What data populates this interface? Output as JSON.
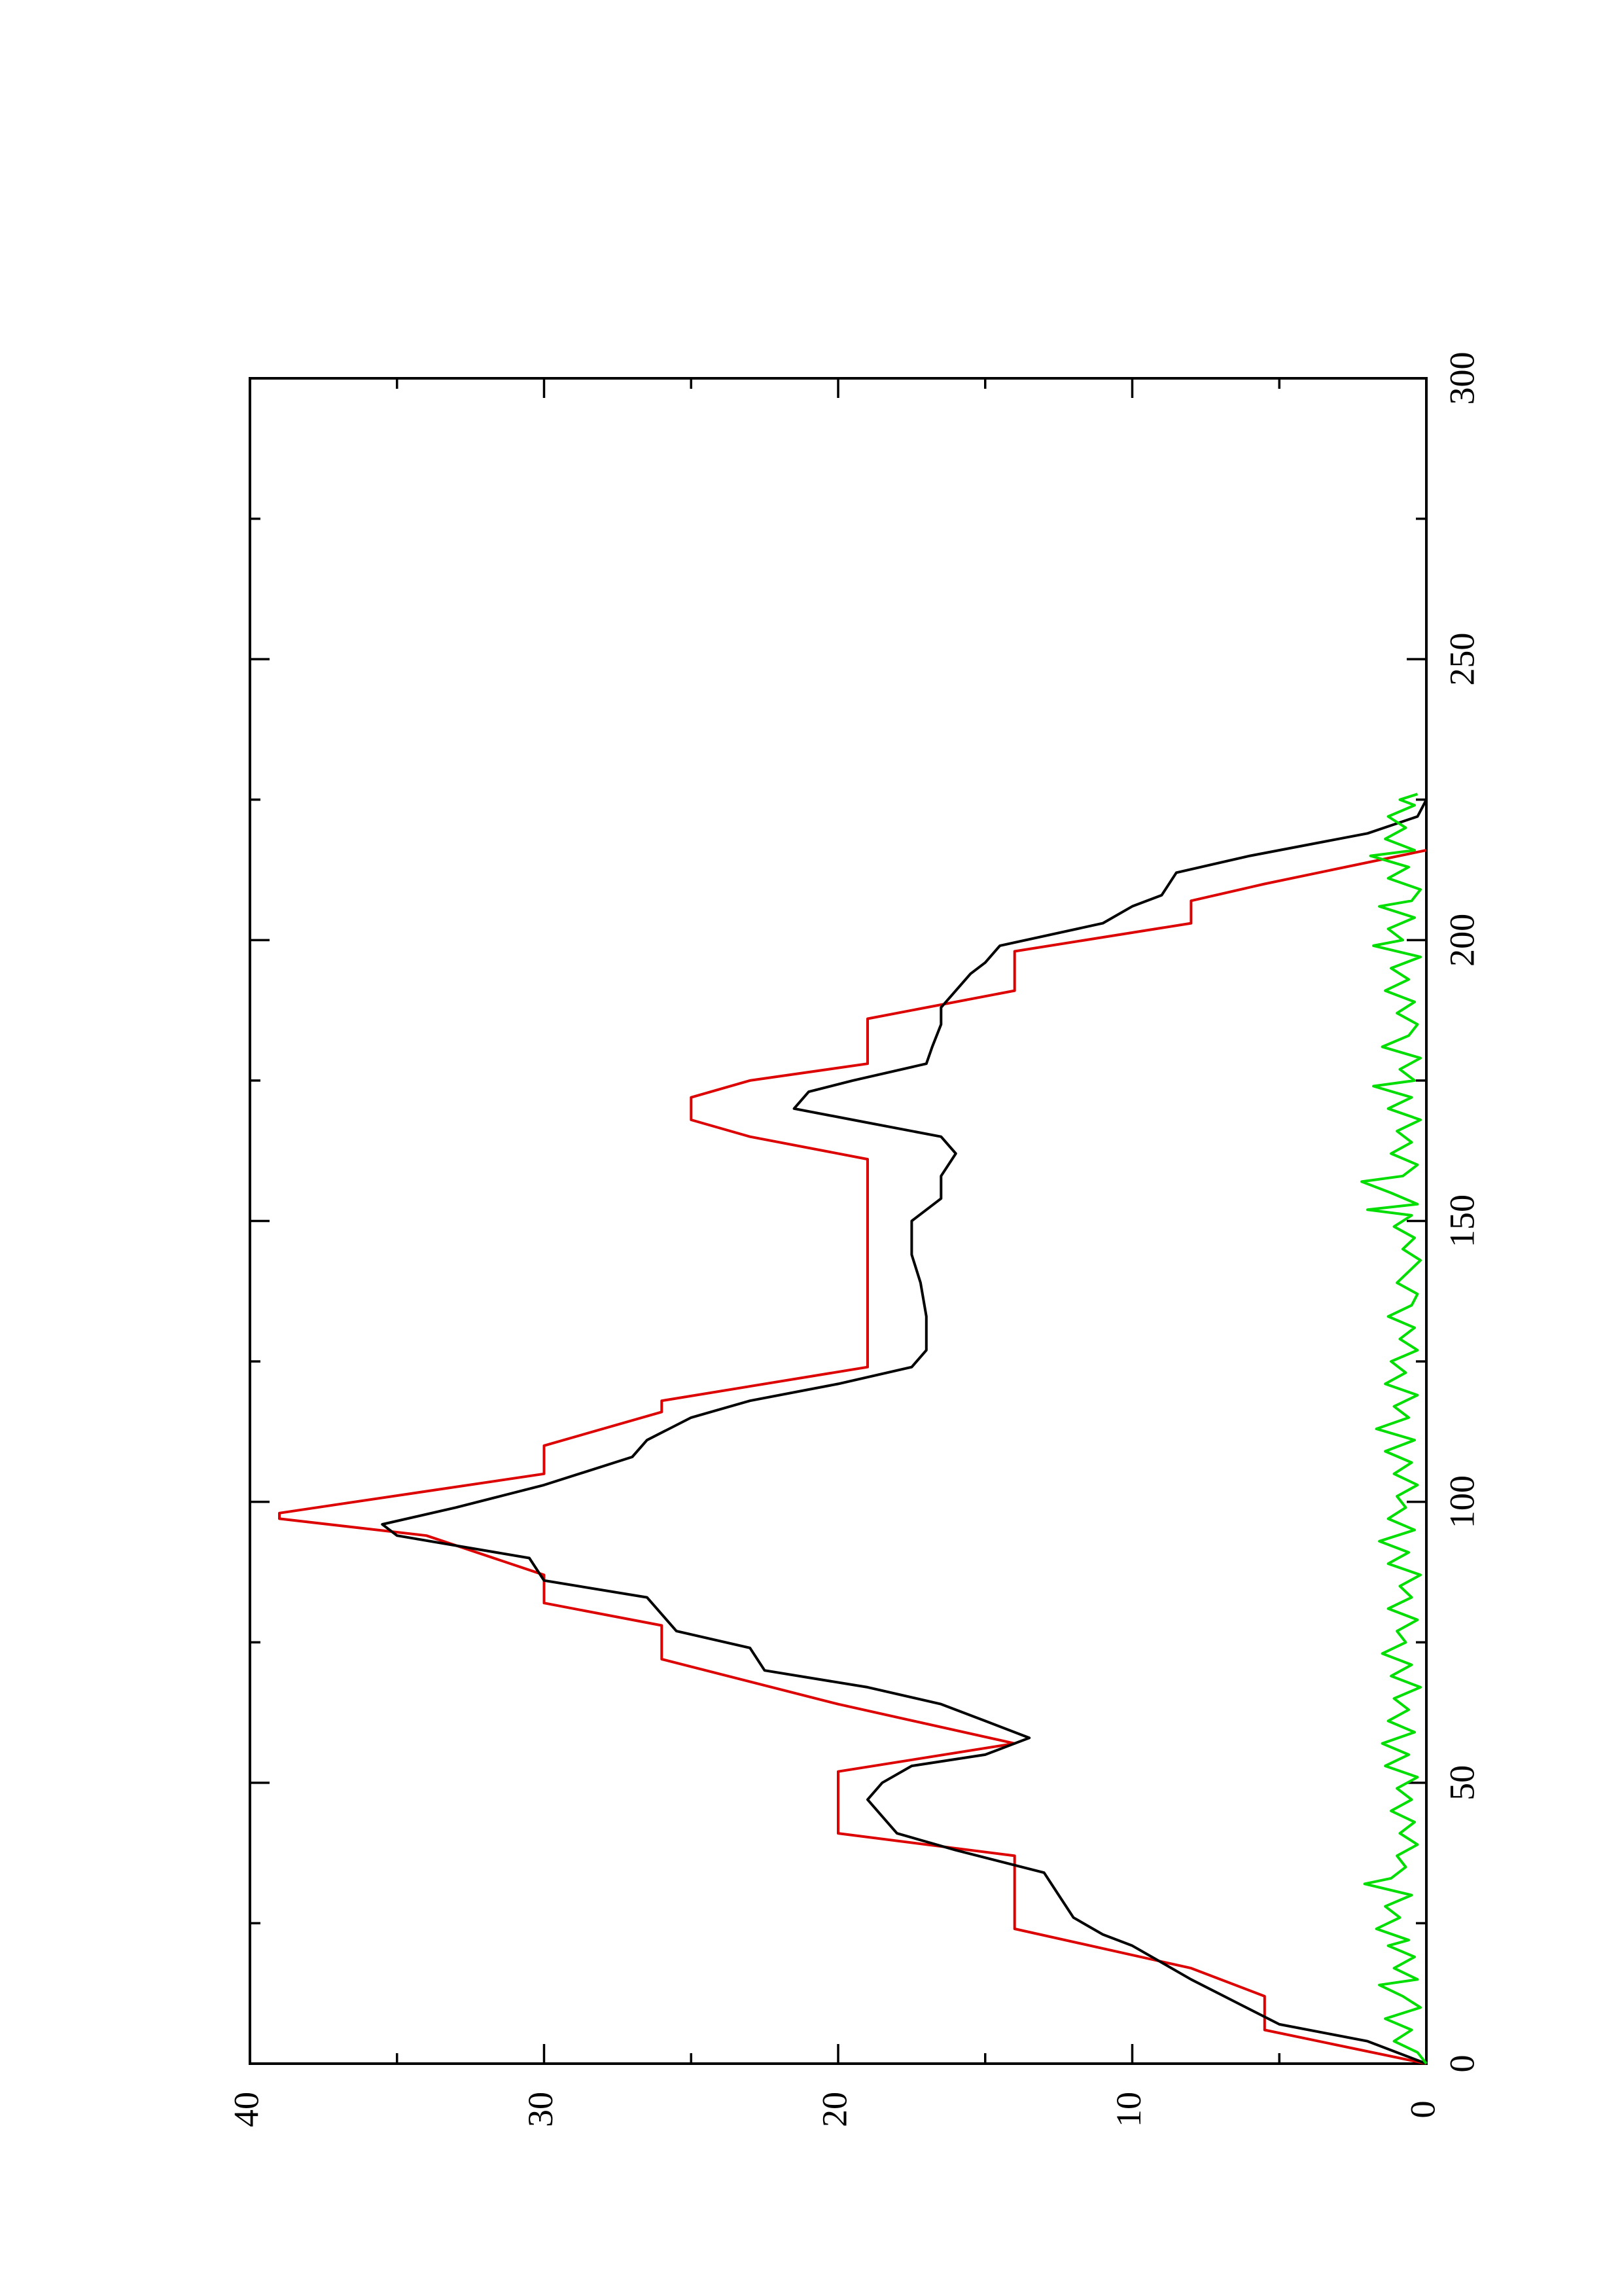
{
  "chart_data": {
    "type": "line",
    "title": "",
    "xlabel": "",
    "ylabel": "",
    "xlim": [
      0,
      300
    ],
    "ylim": [
      0,
      40
    ],
    "x_ticks": [
      0,
      50,
      100,
      150,
      200,
      250,
      300
    ],
    "y_ticks": [
      0,
      10,
      20,
      30,
      40
    ],
    "grid": false,
    "legend": "none",
    "orientation": "rotated-90-ccw",
    "series": [
      {
        "color": "#dd0000",
        "points": [
          [
            0,
            0
          ],
          [
            6,
            5.5
          ],
          [
            12,
            5.5
          ],
          [
            17,
            8
          ],
          [
            24,
            14
          ],
          [
            37,
            14
          ],
          [
            41,
            20
          ],
          [
            52,
            20
          ],
          [
            57,
            14
          ],
          [
            64,
            20
          ],
          [
            72,
            26
          ],
          [
            78,
            26
          ],
          [
            82,
            30
          ],
          [
            87,
            30
          ],
          [
            94,
            34
          ],
          [
            97,
            39
          ],
          [
            98,
            39
          ],
          [
            105,
            30
          ],
          [
            110,
            30
          ],
          [
            116,
            26
          ],
          [
            118,
            26
          ],
          [
            124,
            19
          ],
          [
            161,
            19
          ],
          [
            165,
            23
          ],
          [
            168,
            25
          ],
          [
            172,
            25
          ],
          [
            175,
            23
          ],
          [
            178,
            19
          ],
          [
            186,
            19
          ],
          [
            191,
            14
          ],
          [
            198,
            14
          ],
          [
            203,
            8
          ],
          [
            207,
            8
          ],
          [
            210,
            5.5
          ],
          [
            216,
            0
          ]
        ]
      },
      {
        "color": "#000000",
        "points": [
          [
            0,
            0
          ],
          [
            4,
            2
          ],
          [
            7,
            5
          ],
          [
            11,
            6.5
          ],
          [
            15,
            8
          ],
          [
            18,
            9
          ],
          [
            21,
            10
          ],
          [
            23,
            11
          ],
          [
            26,
            12
          ],
          [
            30,
            12.5
          ],
          [
            34,
            13
          ],
          [
            38,
            16
          ],
          [
            41,
            18
          ],
          [
            44,
            18.5
          ],
          [
            47,
            19
          ],
          [
            50,
            18.5
          ],
          [
            53,
            17.5
          ],
          [
            55,
            15
          ],
          [
            58,
            13.5
          ],
          [
            61,
            15
          ],
          [
            64,
            16.5
          ],
          [
            67,
            19
          ],
          [
            70,
            22.5
          ],
          [
            74,
            23
          ],
          [
            77,
            25.5
          ],
          [
            80,
            26
          ],
          [
            83,
            26.5
          ],
          [
            86,
            30
          ],
          [
            90,
            30.5
          ],
          [
            94,
            35
          ],
          [
            96,
            35.5
          ],
          [
            99,
            33
          ],
          [
            103,
            30
          ],
          [
            108,
            27
          ],
          [
            111,
            26.5
          ],
          [
            115,
            25
          ],
          [
            118,
            23
          ],
          [
            121,
            20
          ],
          [
            124,
            17.5
          ],
          [
            127,
            17
          ],
          [
            133,
            17
          ],
          [
            139,
            17.2
          ],
          [
            144,
            17.5
          ],
          [
            150,
            17.5
          ],
          [
            154,
            16.5
          ],
          [
            158,
            16.5
          ],
          [
            162,
            16
          ],
          [
            165,
            16.5
          ],
          [
            168,
            19.5
          ],
          [
            170,
            21.5
          ],
          [
            173,
            21
          ],
          [
            175,
            19.5
          ],
          [
            178,
            17
          ],
          [
            181,
            16.8
          ],
          [
            185,
            16.5
          ],
          [
            188,
            16.5
          ],
          [
            191,
            16
          ],
          [
            194,
            15.5
          ],
          [
            196,
            15
          ],
          [
            199,
            14.5
          ],
          [
            203,
            11
          ],
          [
            206,
            10
          ],
          [
            208,
            9
          ],
          [
            212,
            8.5
          ],
          [
            215,
            6
          ],
          [
            219,
            2
          ],
          [
            222,
            0.3
          ],
          [
            225,
            0
          ]
        ]
      },
      {
        "color": "#00dd00",
        "points": [
          [
            0,
            0
          ],
          [
            2,
            0.3
          ],
          [
            4,
            1.1
          ],
          [
            6,
            0.5
          ],
          [
            8,
            1.4
          ],
          [
            10,
            0.2
          ],
          [
            12,
            0.8
          ],
          [
            14,
            1.6
          ],
          [
            15,
            0.3
          ],
          [
            17,
            1.1
          ],
          [
            19,
            0.4
          ],
          [
            21,
            1.3
          ],
          [
            22,
            0.6
          ],
          [
            24,
            1.7
          ],
          [
            26,
            0.9
          ],
          [
            28,
            1.4
          ],
          [
            30,
            0.5
          ],
          [
            32,
            2.1
          ],
          [
            33,
            1.2
          ],
          [
            35,
            0.7
          ],
          [
            37,
            1.0
          ],
          [
            39,
            0.3
          ],
          [
            41,
            0.9
          ],
          [
            43,
            0.4
          ],
          [
            45,
            1.2
          ],
          [
            47,
            0.5
          ],
          [
            49,
            1.0
          ],
          [
            51,
            0.3
          ],
          [
            53,
            1.4
          ],
          [
            55,
            0.6
          ],
          [
            57,
            1.5
          ],
          [
            59,
            0.4
          ],
          [
            61,
            1.3
          ],
          [
            63,
            0.6
          ],
          [
            65,
            1.1
          ],
          [
            67,
            0.2
          ],
          [
            69,
            1.2
          ],
          [
            71,
            0.5
          ],
          [
            73,
            1.5
          ],
          [
            75,
            0.7
          ],
          [
            77,
            1.0
          ],
          [
            79,
            0.3
          ],
          [
            81,
            1.3
          ],
          [
            83,
            0.5
          ],
          [
            85,
            0.9
          ],
          [
            87,
            0.2
          ],
          [
            89,
            1.3
          ],
          [
            91,
            0.6
          ],
          [
            93,
            1.6
          ],
          [
            95,
            0.4
          ],
          [
            97,
            1.3
          ],
          [
            99,
            0.7
          ],
          [
            101,
            1.0
          ],
          [
            103,
            0.3
          ],
          [
            105,
            1.1
          ],
          [
            107,
            0.5
          ],
          [
            109,
            1.4
          ],
          [
            111,
            0.4
          ],
          [
            113,
            1.7
          ],
          [
            115,
            0.6
          ],
          [
            117,
            1.1
          ],
          [
            119,
            0.3
          ],
          [
            121,
            1.4
          ],
          [
            123,
            0.7
          ],
          [
            125,
            1.2
          ],
          [
            127,
            0.3
          ],
          [
            129,
            0.9
          ],
          [
            131,
            0.4
          ],
          [
            133,
            1.3
          ],
          [
            135,
            0.5
          ],
          [
            137,
            0.3
          ],
          [
            139,
            1.0
          ],
          [
            141,
            0.6
          ],
          [
            143,
            0.2
          ],
          [
            145,
            0.8
          ],
          [
            147,
            0.4
          ],
          [
            149,
            1.1
          ],
          [
            151,
            0.5
          ],
          [
            152,
            2.0
          ],
          [
            153,
            0.3
          ],
          [
            155,
            1.2
          ],
          [
            157,
            2.2
          ],
          [
            158,
            0.8
          ],
          [
            160,
            0.3
          ],
          [
            162,
            1.2
          ],
          [
            164,
            0.5
          ],
          [
            166,
            1.0
          ],
          [
            168,
            0.2
          ],
          [
            170,
            1.3
          ],
          [
            172,
            0.5
          ],
          [
            174,
            1.8
          ],
          [
            175,
            0.4
          ],
          [
            177,
            0.9
          ],
          [
            179,
            0.2
          ],
          [
            181,
            1.5
          ],
          [
            183,
            0.6
          ],
          [
            185,
            0.3
          ],
          [
            187,
            1.0
          ],
          [
            189,
            0.4
          ],
          [
            191,
            1.4
          ],
          [
            193,
            0.6
          ],
          [
            195,
            1.2
          ],
          [
            197,
            0.2
          ],
          [
            199,
            1.8
          ],
          [
            200,
            0.8
          ],
          [
            202,
            1.3
          ],
          [
            204,
            0.4
          ],
          [
            206,
            1.6
          ],
          [
            207,
            0.5
          ],
          [
            209,
            0.2
          ],
          [
            211,
            1.3
          ],
          [
            213,
            0.6
          ],
          [
            215,
            1.9
          ],
          [
            216,
            0.4
          ],
          [
            218,
            1.4
          ],
          [
            220,
            0.7
          ],
          [
            222,
            1.3
          ],
          [
            224,
            0.4
          ],
          [
            225,
            0.9
          ],
          [
            226,
            0.3
          ]
        ]
      }
    ]
  }
}
